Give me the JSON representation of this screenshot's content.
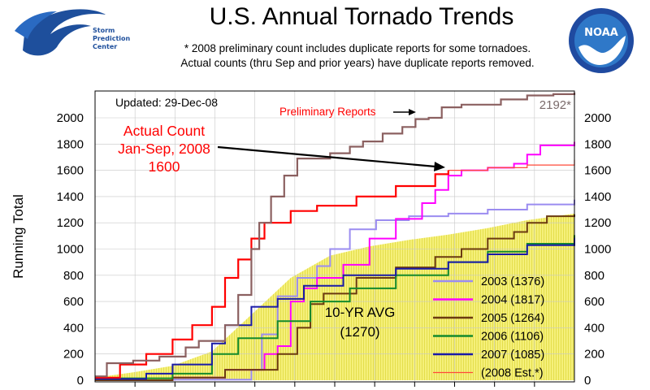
{
  "header": {
    "title": "U.S. Annual Tornado Trends",
    "subtitle_line1": "* 2008 preliminary count includes duplicate reports for some tornadoes.",
    "subtitle_line2": "Actual counts (thru Sep and prior years) have duplicate reports removed.",
    "spc_logo_text": [
      "Storm",
      "Prediction",
      "Center"
    ],
    "noaa_logo_text": "NOAA"
  },
  "colors": {
    "2003": "#9b8cf0",
    "2004": "#ff00ff",
    "2005": "#6b3a10",
    "2006": "#148a2c",
    "2007": "#1a1aa8",
    "2008_est": "#ff4a3a",
    "2008_actual": "#ff0000",
    "2008_prelim": "#8b6060",
    "avg_fill": "#f5f07a"
  },
  "chart_data": {
    "type": "line",
    "title": "U.S. Annual Tornado Trends",
    "ylabel": "Running Total",
    "ylim": [
      0,
      2200
    ],
    "xlim": [
      1,
      366
    ],
    "x_unit": "day of year",
    "yticks": [
      0,
      200,
      400,
      600,
      800,
      1000,
      1200,
      1400,
      1600,
      1800,
      2000
    ],
    "updated_text": "Updated: 29-Dec-08",
    "annotations": {
      "prelim_label": "Preliminary Reports",
      "prelim_total": "2192*",
      "actual_line1": "Actual Count",
      "actual_line2": "Jan-Sep, 2008",
      "actual_line3": "1600",
      "avg_line1": "10-YR AVG",
      "avg_line2": "(1270)"
    },
    "average": {
      "name": "10-YR AVG (1270)",
      "points": [
        [
          1,
          20
        ],
        [
          30,
          60
        ],
        [
          60,
          110
        ],
        [
          90,
          220
        ],
        [
          120,
          500
        ],
        [
          150,
          780
        ],
        [
          180,
          950
        ],
        [
          210,
          1020
        ],
        [
          240,
          1070
        ],
        [
          270,
          1110
        ],
        [
          300,
          1160
        ],
        [
          330,
          1220
        ],
        [
          366,
          1270
        ]
      ]
    },
    "series": [
      {
        "key": "2003",
        "name": "2003 (1376)",
        "points": [
          [
            1,
            0
          ],
          [
            60,
            5
          ],
          [
            120,
            80
          ],
          [
            128,
            350
          ],
          [
            140,
            640
          ],
          [
            155,
            780
          ],
          [
            170,
            870
          ],
          [
            180,
            1000
          ],
          [
            195,
            1150
          ],
          [
            215,
            1220
          ],
          [
            240,
            1250
          ],
          [
            270,
            1270
          ],
          [
            300,
            1300
          ],
          [
            330,
            1340
          ],
          [
            366,
            1376
          ]
        ]
      },
      {
        "key": "2004",
        "name": "2004 (1817)",
        "points": [
          [
            1,
            0
          ],
          [
            60,
            20
          ],
          [
            100,
            80
          ],
          [
            130,
            200
          ],
          [
            140,
            260
          ],
          [
            150,
            600
          ],
          [
            160,
            700
          ],
          [
            170,
            780
          ],
          [
            190,
            880
          ],
          [
            210,
            1080
          ],
          [
            230,
            1230
          ],
          [
            250,
            1350
          ],
          [
            260,
            1450
          ],
          [
            270,
            1560
          ],
          [
            280,
            1600
          ],
          [
            300,
            1620
          ],
          [
            320,
            1650
          ],
          [
            330,
            1720
          ],
          [
            340,
            1790
          ],
          [
            366,
            1817
          ]
        ]
      },
      {
        "key": "2005",
        "name": "2005 (1264)",
        "points": [
          [
            1,
            0
          ],
          [
            60,
            20
          ],
          [
            100,
            80
          ],
          [
            140,
            200
          ],
          [
            155,
            400
          ],
          [
            165,
            580
          ],
          [
            175,
            660
          ],
          [
            200,
            780
          ],
          [
            230,
            860
          ],
          [
            260,
            940
          ],
          [
            280,
            1000
          ],
          [
            300,
            1080
          ],
          [
            320,
            1130
          ],
          [
            330,
            1200
          ],
          [
            345,
            1250
          ],
          [
            366,
            1264
          ]
        ]
      },
      {
        "key": "2006",
        "name": "2006 (1106)",
        "points": [
          [
            1,
            15
          ],
          [
            60,
            50
          ],
          [
            90,
            200
          ],
          [
            110,
            320
          ],
          [
            140,
            450
          ],
          [
            165,
            600
          ],
          [
            195,
            700
          ],
          [
            230,
            800
          ],
          [
            270,
            900
          ],
          [
            300,
            980
          ],
          [
            330,
            1040
          ],
          [
            366,
            1106
          ]
        ]
      },
      {
        "key": "2007",
        "name": "2007 (1085)",
        "points": [
          [
            1,
            10
          ],
          [
            40,
            50
          ],
          [
            60,
            120
          ],
          [
            90,
            280
          ],
          [
            100,
            420
          ],
          [
            120,
            560
          ],
          [
            140,
            620
          ],
          [
            160,
            720
          ],
          [
            190,
            800
          ],
          [
            230,
            850
          ],
          [
            270,
            900
          ],
          [
            300,
            960
          ],
          [
            330,
            1030
          ],
          [
            366,
            1085
          ]
        ]
      },
      {
        "key": "2008_est",
        "name": "(2008 Est.*)",
        "points": [
          [
            270,
            1600
          ],
          [
            300,
            1620
          ],
          [
            330,
            1640
          ],
          [
            366,
            1680
          ]
        ]
      }
    ],
    "series_2008_actual": {
      "name": "Actual Count Jan-Sep, 2008",
      "points": [
        [
          1,
          20
        ],
        [
          20,
          120
        ],
        [
          40,
          200
        ],
        [
          60,
          310
        ],
        [
          75,
          420
        ],
        [
          90,
          560
        ],
        [
          100,
          780
        ],
        [
          110,
          920
        ],
        [
          120,
          1080
        ],
        [
          130,
          1200
        ],
        [
          150,
          1290
        ],
        [
          170,
          1330
        ],
        [
          200,
          1400
        ],
        [
          230,
          1480
        ],
        [
          260,
          1570
        ],
        [
          270,
          1600
        ]
      ]
    },
    "series_2008_prelim": {
      "name": "Preliminary Reports",
      "points": [
        [
          1,
          30
        ],
        [
          10,
          130
        ],
        [
          30,
          150
        ],
        [
          50,
          180
        ],
        [
          70,
          250
        ],
        [
          80,
          300
        ],
        [
          100,
          420
        ],
        [
          110,
          650
        ],
        [
          120,
          1000
        ],
        [
          126,
          1200
        ],
        [
          135,
          1400
        ],
        [
          145,
          1560
        ],
        [
          155,
          1690
        ],
        [
          180,
          1730
        ],
        [
          195,
          1780
        ],
        [
          205,
          1820
        ],
        [
          220,
          1880
        ],
        [
          235,
          1930
        ],
        [
          245,
          1990
        ],
        [
          255,
          2000
        ],
        [
          265,
          2080
        ],
        [
          280,
          2100
        ],
        [
          310,
          2140
        ],
        [
          330,
          2170
        ],
        [
          350,
          2180
        ],
        [
          366,
          2192
        ]
      ]
    }
  }
}
